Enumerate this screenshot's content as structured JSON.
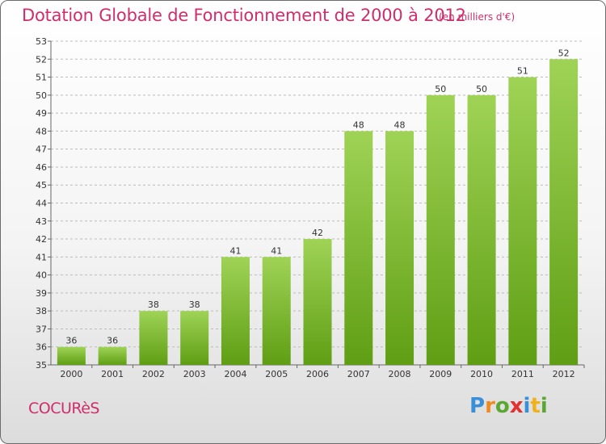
{
  "header": {
    "title": "Dotation Globale de Fonctionnement de 2000 à 2012",
    "unit_note": "(en milliers d'€)"
  },
  "footer": {
    "commune": "COCURèS",
    "brand_letters": [
      "P",
      "r",
      "o",
      "x",
      "i",
      "t",
      "i"
    ],
    "brand_colors": [
      "#3a8fd9",
      "#f08a1c",
      "#5aa832",
      "#e0302f",
      "#3a8fd9",
      "#f0b21c",
      "#5aa832"
    ]
  },
  "colors": {
    "title": "#cf2d6b",
    "bar_top": "#9fd356",
    "bar_bottom": "#5f9e14",
    "grid": "#bbbbbb",
    "axis_text": "#333333"
  },
  "chart_data": {
    "type": "bar",
    "categories": [
      "2000",
      "2001",
      "2002",
      "2003",
      "2004",
      "2005",
      "2006",
      "2007",
      "2008",
      "2009",
      "2010",
      "2011",
      "2012"
    ],
    "values": [
      36,
      36,
      38,
      38,
      41,
      41,
      42,
      48,
      48,
      50,
      50,
      51,
      52
    ],
    "ylim": [
      35,
      53
    ],
    "yticks": [
      35,
      36,
      37,
      38,
      39,
      40,
      41,
      42,
      43,
      44,
      45,
      46,
      47,
      48,
      49,
      50,
      51,
      52,
      53
    ],
    "grid": true,
    "grid_style": "dashed horizontal",
    "data_labels": true
  }
}
